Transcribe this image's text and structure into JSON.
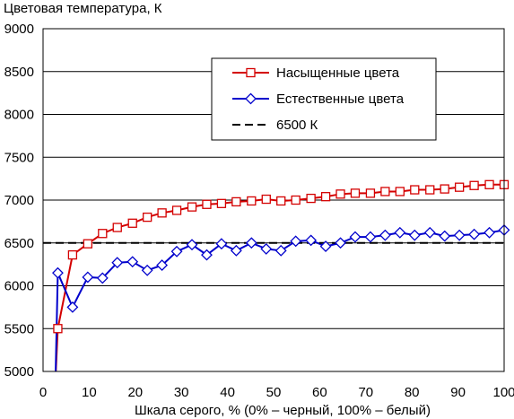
{
  "chart_data": {
    "type": "line",
    "title": "",
    "ylabel": "Цветовая температура, К",
    "xlabel": "Шкала серого, % (0% – черный, 100% – белый)",
    "xlim": [
      0,
      100
    ],
    "ylim": [
      5000,
      9000
    ],
    "xticks": [
      0,
      10,
      20,
      30,
      40,
      50,
      60,
      70,
      80,
      90,
      100
    ],
    "yticks": [
      5000,
      5500,
      6000,
      6500,
      7000,
      7500,
      8000,
      8500,
      9000
    ],
    "grid": "horizontal",
    "legend_position": "top-right",
    "series": [
      {
        "name": "Насыщенные цвета",
        "color": "#d40000",
        "marker": "square",
        "x": [
          3.2,
          6.4,
          9.7,
          12.9,
          16.1,
          19.4,
          22.6,
          25.8,
          29.0,
          32.3,
          35.5,
          38.7,
          41.9,
          45.2,
          48.4,
          51.6,
          54.8,
          58.1,
          61.3,
          64.5,
          67.7,
          71.0,
          74.2,
          77.4,
          80.6,
          83.9,
          87.1,
          90.3,
          93.5,
          96.8,
          100
        ],
        "y": [
          5500,
          6360,
          6490,
          6610,
          6680,
          6730,
          6800,
          6850,
          6880,
          6920,
          6950,
          6960,
          6980,
          6990,
          7010,
          6990,
          7000,
          7020,
          7040,
          7070,
          7080,
          7080,
          7100,
          7100,
          7120,
          7120,
          7130,
          7150,
          7170,
          7180,
          7180
        ]
      },
      {
        "name": "Естественные цвета",
        "color": "#0000cc",
        "marker": "diamond",
        "x": [
          3.2,
          6.4,
          9.7,
          12.9,
          16.1,
          19.4,
          22.6,
          25.8,
          29.0,
          32.3,
          35.5,
          38.7,
          41.9,
          45.2,
          48.4,
          51.6,
          54.8,
          58.1,
          61.3,
          64.5,
          67.7,
          71.0,
          74.2,
          77.4,
          80.6,
          83.9,
          87.1,
          90.3,
          93.5,
          96.8,
          100
        ],
        "y": [
          6150,
          5750,
          6100,
          6090,
          6270,
          6280,
          6180,
          6240,
          6400,
          6480,
          6360,
          6490,
          6410,
          6500,
          6430,
          6410,
          6520,
          6530,
          6460,
          6500,
          6570,
          6570,
          6590,
          6620,
          6590,
          6620,
          6580,
          6590,
          6600,
          6620,
          6650
        ]
      },
      {
        "name": "6500 К",
        "color": "#000000",
        "style": "dashed",
        "x": [
          0,
          100
        ],
        "y": [
          6500,
          6500
        ]
      }
    ]
  }
}
